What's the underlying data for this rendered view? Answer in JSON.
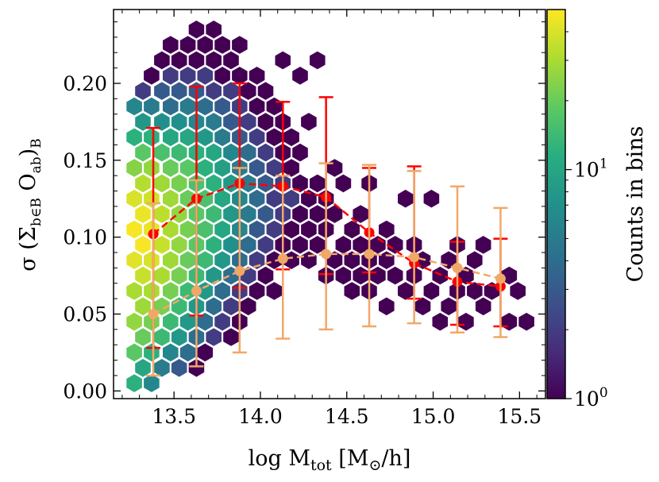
{
  "chart_data": {
    "type": "scatter",
    "subtype": "hexbin-with-errorbars",
    "title": "",
    "xlabel": "log M_tot [M_⊙/h]",
    "ylabel": "σ (Σ_{b∈B} O_ab)_B",
    "xlim": [
      13.15,
      15.65
    ],
    "ylim": [
      -0.005,
      0.248
    ],
    "xticks": [
      "13.5",
      "14.0",
      "14.5",
      "15.0",
      "15.5"
    ],
    "yticks": [
      "0.00",
      "0.05",
      "0.10",
      "0.15",
      "0.20"
    ],
    "colorbar": {
      "label": "Counts in bins",
      "scale": "log",
      "range": [
        1,
        50
      ],
      "ticks": [
        "10^0",
        "10^1"
      ],
      "colormap": [
        "#440154",
        "#472d7b",
        "#3b528b",
        "#2c728e",
        "#21918c",
        "#28ae80",
        "#5ec962",
        "#addc30",
        "#fde725"
      ]
    },
    "series": [
      {
        "name": "red",
        "color": "#ff0000",
        "x": [
          13.38,
          13.63,
          13.88,
          14.13,
          14.38,
          14.63,
          14.89,
          15.14,
          15.39
        ],
        "y": [
          0.102,
          0.125,
          0.135,
          0.133,
          0.126,
          0.103,
          0.083,
          0.071,
          0.068
        ],
        "yerr_low": [
          0.028,
          0.049,
          0.067,
          0.079,
          0.076,
          0.077,
          0.06,
          0.043,
          0.042
        ],
        "yerr_high": [
          0.171,
          0.198,
          0.2,
          0.188,
          0.191,
          0.145,
          0.146,
          0.097,
          0.099
        ]
      },
      {
        "name": "orange",
        "color": "#f0a868",
        "x": [
          13.38,
          13.63,
          13.88,
          14.13,
          14.38,
          14.63,
          14.89,
          15.14,
          15.39
        ],
        "y": [
          0.05,
          0.065,
          0.078,
          0.086,
          0.089,
          0.089,
          0.087,
          0.08,
          0.073
        ],
        "yerr_low": [
          0.01,
          0.016,
          0.025,
          0.034,
          0.04,
          0.042,
          0.044,
          0.038,
          0.035
        ],
        "yerr_high": [
          0.122,
          0.137,
          0.145,
          0.14,
          0.148,
          0.147,
          0.143,
          0.133,
          0.119
        ]
      }
    ],
    "hexbins": [
      [
        13.27,
        0.005,
        12
      ],
      [
        13.27,
        0.025,
        18
      ],
      [
        13.27,
        0.045,
        26
      ],
      [
        13.27,
        0.065,
        30
      ],
      [
        13.27,
        0.085,
        42
      ],
      [
        13.27,
        0.105,
        48
      ],
      [
        13.27,
        0.125,
        40
      ],
      [
        13.27,
        0.145,
        24
      ],
      [
        13.27,
        0.165,
        12
      ],
      [
        13.27,
        0.185,
        6
      ],
      [
        13.32,
        0.015,
        10
      ],
      [
        13.32,
        0.035,
        20
      ],
      [
        13.32,
        0.055,
        28
      ],
      [
        13.32,
        0.075,
        36
      ],
      [
        13.32,
        0.095,
        48
      ],
      [
        13.32,
        0.115,
        45
      ],
      [
        13.32,
        0.135,
        32
      ],
      [
        13.32,
        0.155,
        18
      ],
      [
        13.32,
        0.175,
        8
      ],
      [
        13.32,
        0.195,
        2
      ],
      [
        13.37,
        0.005,
        6
      ],
      [
        13.37,
        0.025,
        12
      ],
      [
        13.37,
        0.045,
        22
      ],
      [
        13.37,
        0.065,
        30
      ],
      [
        13.37,
        0.085,
        40
      ],
      [
        13.37,
        0.105,
        44
      ],
      [
        13.37,
        0.125,
        38
      ],
      [
        13.37,
        0.145,
        26
      ],
      [
        13.37,
        0.165,
        12
      ],
      [
        13.37,
        0.185,
        5
      ],
      [
        13.37,
        0.205,
        1
      ],
      [
        13.43,
        0.015,
        5
      ],
      [
        13.43,
        0.035,
        14
      ],
      [
        13.43,
        0.055,
        22
      ],
      [
        13.43,
        0.075,
        30
      ],
      [
        13.43,
        0.095,
        36
      ],
      [
        13.43,
        0.115,
        34
      ],
      [
        13.43,
        0.135,
        28
      ],
      [
        13.43,
        0.155,
        16
      ],
      [
        13.43,
        0.175,
        7
      ],
      [
        13.43,
        0.195,
        3
      ],
      [
        13.43,
        0.215,
        1
      ],
      [
        13.48,
        0.025,
        6
      ],
      [
        13.48,
        0.045,
        14
      ],
      [
        13.48,
        0.065,
        22
      ],
      [
        13.48,
        0.085,
        28
      ],
      [
        13.48,
        0.105,
        30
      ],
      [
        13.48,
        0.125,
        28
      ],
      [
        13.48,
        0.145,
        20
      ],
      [
        13.48,
        0.165,
        10
      ],
      [
        13.48,
        0.185,
        4
      ],
      [
        13.48,
        0.205,
        2
      ],
      [
        13.48,
        0.225,
        1
      ],
      [
        13.53,
        0.015,
        3
      ],
      [
        13.53,
        0.035,
        8
      ],
      [
        13.53,
        0.055,
        14
      ],
      [
        13.53,
        0.075,
        22
      ],
      [
        13.53,
        0.095,
        26
      ],
      [
        13.53,
        0.115,
        26
      ],
      [
        13.53,
        0.135,
        22
      ],
      [
        13.53,
        0.155,
        14
      ],
      [
        13.53,
        0.175,
        7
      ],
      [
        13.53,
        0.195,
        3
      ],
      [
        13.53,
        0.215,
        1
      ],
      [
        13.58,
        0.025,
        4
      ],
      [
        13.58,
        0.045,
        8
      ],
      [
        13.58,
        0.065,
        14
      ],
      [
        13.58,
        0.085,
        20
      ],
      [
        13.58,
        0.105,
        22
      ],
      [
        13.58,
        0.125,
        20
      ],
      [
        13.58,
        0.145,
        18
      ],
      [
        13.58,
        0.165,
        10
      ],
      [
        13.58,
        0.185,
        5
      ],
      [
        13.58,
        0.205,
        2
      ],
      [
        13.58,
        0.225,
        1
      ],
      [
        13.63,
        0.015,
        1
      ],
      [
        13.63,
        0.035,
        4
      ],
      [
        13.63,
        0.055,
        8
      ],
      [
        13.63,
        0.075,
        14
      ],
      [
        13.63,
        0.095,
        18
      ],
      [
        13.63,
        0.115,
        18
      ],
      [
        13.63,
        0.135,
        16
      ],
      [
        13.63,
        0.155,
        12
      ],
      [
        13.63,
        0.175,
        6
      ],
      [
        13.63,
        0.195,
        3
      ],
      [
        13.63,
        0.215,
        1
      ],
      [
        13.63,
        0.235,
        1
      ],
      [
        13.68,
        0.025,
        1
      ],
      [
        13.68,
        0.045,
        4
      ],
      [
        13.68,
        0.065,
        8
      ],
      [
        13.68,
        0.085,
        14
      ],
      [
        13.68,
        0.105,
        16
      ],
      [
        13.68,
        0.125,
        16
      ],
      [
        13.68,
        0.145,
        12
      ],
      [
        13.68,
        0.165,
        8
      ],
      [
        13.68,
        0.185,
        4
      ],
      [
        13.68,
        0.205,
        2
      ],
      [
        13.68,
        0.225,
        1
      ],
      [
        13.73,
        0.035,
        2
      ],
      [
        13.73,
        0.055,
        4
      ],
      [
        13.73,
        0.075,
        8
      ],
      [
        13.73,
        0.095,
        12
      ],
      [
        13.73,
        0.115,
        14
      ],
      [
        13.73,
        0.135,
        12
      ],
      [
        13.73,
        0.155,
        10
      ],
      [
        13.73,
        0.175,
        5
      ],
      [
        13.73,
        0.195,
        2
      ],
      [
        13.73,
        0.215,
        1
      ],
      [
        13.73,
        0.235,
        1
      ],
      [
        13.78,
        0.045,
        2
      ],
      [
        13.78,
        0.065,
        4
      ],
      [
        13.78,
        0.085,
        8
      ],
      [
        13.78,
        0.105,
        10
      ],
      [
        13.78,
        0.125,
        10
      ],
      [
        13.78,
        0.145,
        9
      ],
      [
        13.78,
        0.165,
        5
      ],
      [
        13.78,
        0.185,
        3
      ],
      [
        13.78,
        0.205,
        1
      ],
      [
        13.78,
        0.225,
        1
      ],
      [
        13.83,
        0.035,
        1
      ],
      [
        13.83,
        0.055,
        2
      ],
      [
        13.83,
        0.075,
        4
      ],
      [
        13.83,
        0.095,
        7
      ],
      [
        13.83,
        0.115,
        8
      ],
      [
        13.83,
        0.135,
        8
      ],
      [
        13.83,
        0.155,
        6
      ],
      [
        13.83,
        0.175,
        3
      ],
      [
        13.83,
        0.195,
        2
      ],
      [
        13.83,
        0.215,
        1
      ],
      [
        13.88,
        0.045,
        1
      ],
      [
        13.88,
        0.065,
        2
      ],
      [
        13.88,
        0.085,
        4
      ],
      [
        13.88,
        0.105,
        6
      ],
      [
        13.88,
        0.125,
        6
      ],
      [
        13.88,
        0.145,
        5
      ],
      [
        13.88,
        0.165,
        3
      ],
      [
        13.88,
        0.185,
        2
      ],
      [
        13.88,
        0.205,
        1
      ],
      [
        13.88,
        0.225,
        1
      ],
      [
        13.93,
        0.055,
        1
      ],
      [
        13.93,
        0.075,
        2
      ],
      [
        13.93,
        0.095,
        4
      ],
      [
        13.93,
        0.115,
        5
      ],
      [
        13.93,
        0.135,
        5
      ],
      [
        13.93,
        0.155,
        4
      ],
      [
        13.93,
        0.175,
        2
      ],
      [
        13.93,
        0.195,
        1
      ],
      [
        13.98,
        0.065,
        1
      ],
      [
        13.98,
        0.085,
        2
      ],
      [
        13.98,
        0.105,
        3
      ],
      [
        13.98,
        0.125,
        4
      ],
      [
        13.98,
        0.145,
        3
      ],
      [
        13.98,
        0.165,
        2
      ],
      [
        13.98,
        0.185,
        1
      ],
      [
        13.98,
        0.205,
        1
      ],
      [
        14.03,
        0.075,
        1
      ],
      [
        14.03,
        0.095,
        2
      ],
      [
        14.03,
        0.115,
        3
      ],
      [
        14.03,
        0.135,
        3
      ],
      [
        14.03,
        0.155,
        2
      ],
      [
        14.03,
        0.175,
        1
      ],
      [
        14.03,
        0.195,
        1
      ],
      [
        14.08,
        0.065,
        1
      ],
      [
        14.08,
        0.085,
        1
      ],
      [
        14.08,
        0.105,
        2
      ],
      [
        14.08,
        0.125,
        2
      ],
      [
        14.08,
        0.145,
        2
      ],
      [
        14.08,
        0.165,
        1
      ],
      [
        14.08,
        0.185,
        1
      ],
      [
        14.13,
        0.095,
        1
      ],
      [
        14.13,
        0.115,
        2
      ],
      [
        14.13,
        0.135,
        2
      ],
      [
        14.13,
        0.155,
        1
      ],
      [
        14.13,
        0.175,
        1
      ],
      [
        14.13,
        0.215,
        1
      ],
      [
        14.18,
        0.085,
        1
      ],
      [
        14.18,
        0.105,
        1
      ],
      [
        14.18,
        0.125,
        2
      ],
      [
        14.18,
        0.145,
        1
      ],
      [
        14.18,
        0.165,
        1
      ],
      [
        14.23,
        0.095,
        1
      ],
      [
        14.23,
        0.115,
        1
      ],
      [
        14.23,
        0.135,
        1
      ],
      [
        14.23,
        0.155,
        1
      ],
      [
        14.23,
        0.205,
        1
      ],
      [
        14.28,
        0.085,
        1
      ],
      [
        14.28,
        0.105,
        1
      ],
      [
        14.28,
        0.125,
        1
      ],
      [
        14.28,
        0.175,
        1
      ],
      [
        14.33,
        0.095,
        1
      ],
      [
        14.33,
        0.115,
        1
      ],
      [
        14.33,
        0.135,
        1
      ],
      [
        14.33,
        0.215,
        1
      ],
      [
        14.38,
        0.075,
        1
      ],
      [
        14.38,
        0.105,
        1
      ],
      [
        14.38,
        0.125,
        1
      ],
      [
        14.43,
        0.085,
        1
      ],
      [
        14.43,
        0.115,
        1
      ],
      [
        14.43,
        0.145,
        1
      ],
      [
        14.48,
        0.075,
        1
      ],
      [
        14.48,
        0.095,
        1
      ],
      [
        14.48,
        0.135,
        1
      ],
      [
        14.53,
        0.085,
        1
      ],
      [
        14.53,
        0.105,
        1
      ],
      [
        14.53,
        0.065,
        1
      ],
      [
        14.58,
        0.075,
        1
      ],
      [
        14.58,
        0.095,
        1
      ],
      [
        14.58,
        0.115,
        1
      ],
      [
        14.63,
        0.085,
        1
      ],
      [
        14.63,
        0.065,
        1
      ],
      [
        14.63,
        0.135,
        1
      ],
      [
        14.68,
        0.075,
        1
      ],
      [
        14.68,
        0.095,
        1
      ],
      [
        14.73,
        0.085,
        1
      ],
      [
        14.73,
        0.105,
        1
      ],
      [
        14.73,
        0.055,
        1
      ],
      [
        14.78,
        0.075,
        1
      ],
      [
        14.78,
        0.095,
        1
      ],
      [
        14.84,
        0.065,
        1
      ],
      [
        14.84,
        0.125,
        1
      ],
      [
        14.89,
        0.075,
        1
      ],
      [
        14.89,
        0.095,
        1
      ],
      [
        14.94,
        0.055,
        1
      ],
      [
        14.94,
        0.085,
        1
      ],
      [
        14.99,
        0.065,
        1
      ],
      [
        14.99,
        0.125,
        1
      ],
      [
        15.04,
        0.075,
        1
      ],
      [
        15.04,
        0.045,
        1
      ],
      [
        15.09,
        0.085,
        1
      ],
      [
        15.09,
        0.055,
        1
      ],
      [
        15.14,
        0.065,
        1
      ],
      [
        15.14,
        0.095,
        1
      ],
      [
        15.19,
        0.075,
        1
      ],
      [
        15.19,
        0.045,
        1
      ],
      [
        15.24,
        0.065,
        1
      ],
      [
        15.24,
        0.085,
        1
      ],
      [
        15.29,
        0.055,
        1
      ],
      [
        15.29,
        0.095,
        1
      ],
      [
        15.34,
        0.065,
        1
      ],
      [
        15.44,
        0.045,
        1
      ],
      [
        15.44,
        0.075,
        1
      ],
      [
        15.49,
        0.065,
        1
      ],
      [
        15.54,
        0.045,
        1
      ]
    ]
  }
}
